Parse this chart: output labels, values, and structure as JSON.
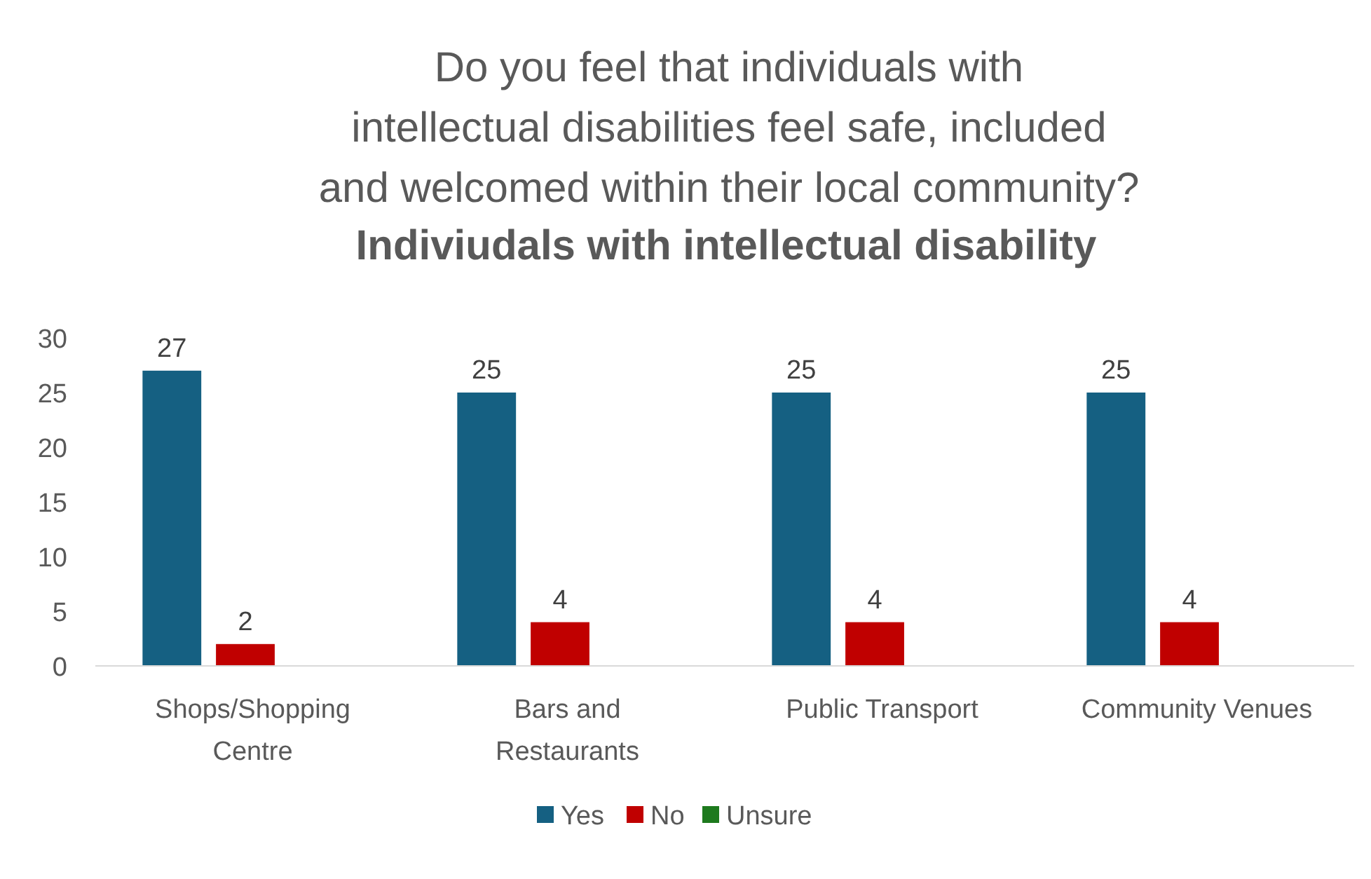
{
  "chart_data": {
    "type": "bar",
    "title": "Do you feel that individuals with intellectual disabilities feel safe, included and welcomed within their local community?",
    "subtitle": "Indiviudals with intellectual disability",
    "categories": [
      "Shops/Shopping Centre",
      "Bars and Restaurants",
      "Public Transport",
      "Community Venues"
    ],
    "series": [
      {
        "name": "Yes",
        "color": "#156082",
        "values": [
          27,
          25,
          25,
          25
        ],
        "value_labels": [
          "27",
          "25",
          "25",
          "25"
        ]
      },
      {
        "name": "No",
        "color": "#c00000",
        "values": [
          2,
          4,
          4,
          4
        ],
        "value_labels": [
          "2",
          "4",
          "4",
          "4"
        ]
      },
      {
        "name": "Unsure",
        "color": "#1e7a1e",
        "values": [
          0,
          0,
          0,
          0
        ],
        "value_labels": [
          null,
          null,
          null,
          null
        ]
      }
    ],
    "ylim": [
      0,
      30
    ],
    "yticks": [
      0,
      5,
      10,
      15,
      20,
      25,
      30
    ],
    "grid": false,
    "legend": "bottom"
  }
}
